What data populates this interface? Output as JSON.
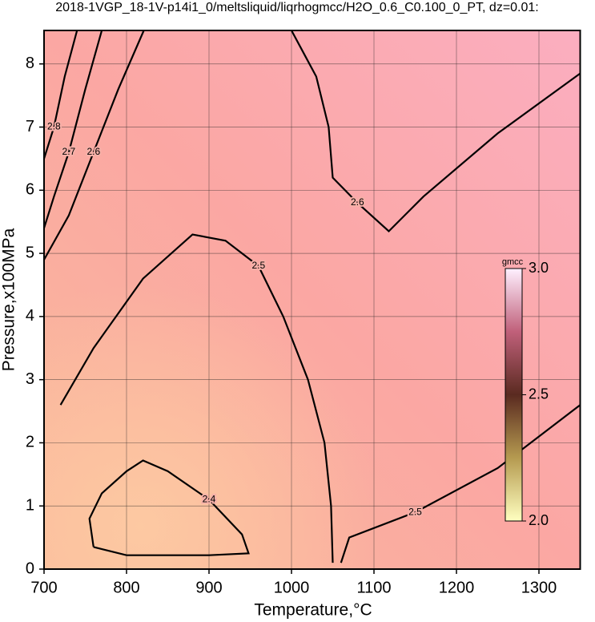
{
  "chart_data": {
    "type": "contour",
    "title": "2018-1VGP_18-1V-p14i1_0/meltsliquid/liqrhogmcc/H2O_0.6_C0.100_0_PT, dz=0.01:",
    "x_label": "Temperature,°C",
    "y_label": "Pressure,x100MPa",
    "xlim": [
      700,
      1350
    ],
    "ylim": [
      0,
      8.53
    ],
    "xticks": [
      700,
      800,
      900,
      1000,
      1100,
      1200,
      1300
    ],
    "yticks": [
      0,
      1,
      2,
      3,
      4,
      5,
      6,
      7,
      8
    ],
    "grid": true,
    "contours": [
      {
        "level": 2.4,
        "x": [
          760,
          755,
          770,
          800,
          820,
          850,
          900,
          940,
          948,
          900,
          800,
          760
        ],
        "y": [
          0.35,
          0.8,
          1.2,
          1.55,
          1.72,
          1.55,
          1.1,
          0.55,
          0.25,
          0.22,
          0.22,
          0.35
        ]
      },
      {
        "level": 2.5,
        "x": [
          720,
          760,
          820,
          880,
          920,
          960,
          990,
          1020,
          1040,
          1048,
          1050
        ],
        "y": [
          2.6,
          3.5,
          4.6,
          5.3,
          5.2,
          4.8,
          4.0,
          3.0,
          2.0,
          1.0,
          0.1
        ]
      },
      {
        "level": 2.5,
        "x": [
          1060,
          1070,
          1150,
          1250,
          1350
        ],
        "y": [
          0.1,
          0.5,
          0.9,
          1.6,
          2.6
        ]
      },
      {
        "level": 2.6,
        "x": [
          1000,
          1030,
          1045,
          1050,
          1080,
          1118,
          1160,
          1250,
          1350
        ],
        "y": [
          8.53,
          7.8,
          7.0,
          6.2,
          5.8,
          5.35,
          5.9,
          6.9,
          7.85
        ]
      },
      {
        "level": 2.6,
        "x": [
          821,
          790,
          760,
          730,
          700
        ],
        "y": [
          8.53,
          7.6,
          6.6,
          5.6,
          4.9
        ]
      },
      {
        "level": 2.7,
        "x": [
          770,
          750,
          730,
          712,
          700
        ],
        "y": [
          8.53,
          7.6,
          6.6,
          5.9,
          5.4
        ]
      },
      {
        "level": 2.8,
        "x": [
          740,
          725,
          712,
          700
        ],
        "y": [
          8.53,
          7.8,
          7.0,
          6.5
        ]
      }
    ],
    "colorbar": {
      "label": "gmcc",
      "clim": [
        2,
        3
      ],
      "ticks": [
        {
          "value": 3,
          "label": "3.0"
        },
        {
          "value": 2.5,
          "label": "2.5"
        },
        {
          "value": 2,
          "label": "2.0"
        }
      ]
    }
  }
}
